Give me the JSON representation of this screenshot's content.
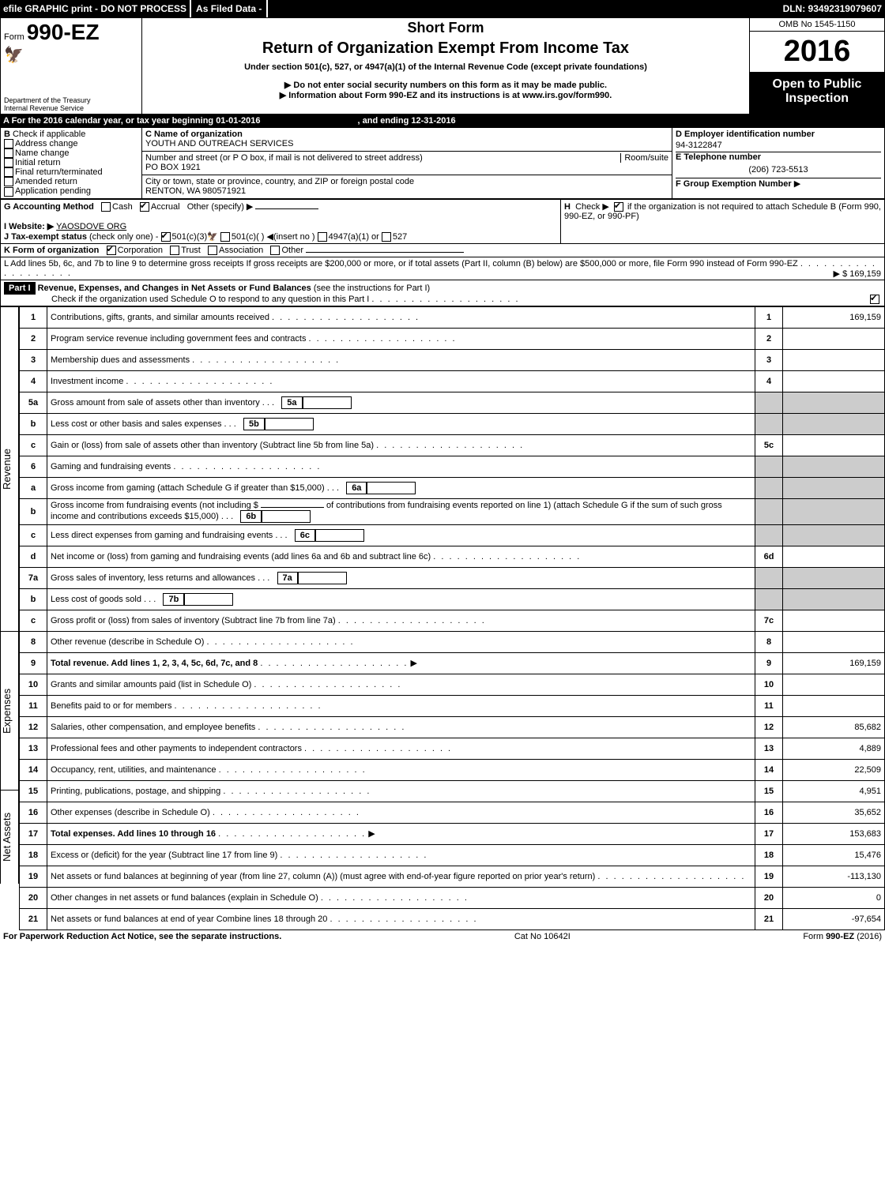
{
  "header": {
    "efile": "efile GRAPHIC print - DO NOT PROCESS",
    "asfiled": "As Filed Data -",
    "dln": "DLN: 93492319079607"
  },
  "top": {
    "form_prefix": "Form",
    "form_number": "990-EZ",
    "dept1": "Department of the Treasury",
    "dept2": "Internal Revenue Service",
    "short_form": "Short Form",
    "return_title": "Return of Organization Exempt From Income Tax",
    "under_section": "Under section 501(c), 527, or 4947(a)(1) of the Internal Revenue Code (except private foundations)",
    "info1": "▶ Do not enter social security numbers on this form as it may be made public.",
    "info2": "▶ Information about Form 990-EZ and its instructions is at www.irs.gov/form990.",
    "omb": "OMB No 1545-1150",
    "year": "2016",
    "open1": "Open to Public",
    "open2": "Inspection"
  },
  "section_a": {
    "text": "A  For the 2016 calendar year, or tax year beginning 01-01-2016",
    "ending": ", and ending 12-31-2016"
  },
  "section_b": {
    "title": "B",
    "check_label": "Check if applicable",
    "items": [
      "Address change",
      "Name change",
      "Initial return",
      "Final return/terminated",
      "Amended return",
      "Application pending"
    ]
  },
  "section_c": {
    "label": "C Name of organization",
    "name": "YOUTH AND OUTREACH SERVICES",
    "street_label": "Number and street (or P O box, if mail is not delivered to street address)",
    "room_label": "Room/suite",
    "street": "PO BOX 1921",
    "city_label": "City or town, state or province, country, and ZIP or foreign postal code",
    "city": "RENTON, WA  980571921"
  },
  "section_d": {
    "label": "D Employer identification number",
    "value": "94-3122847",
    "e_label": "E Telephone number",
    "e_value": "(206) 723-5513",
    "f_label": "F Group Exemption Number",
    "f_arrow": "▶"
  },
  "section_g": {
    "label": "G Accounting Method",
    "cash": "Cash",
    "accrual": "Accrual",
    "other": "Other (specify) ▶"
  },
  "section_h": {
    "label": "H",
    "text1": "Check ▶",
    "text2": "if the organization is not required to attach Schedule B (Form 990, 990-EZ, or 990-PF)"
  },
  "section_i": {
    "label": "I Website: ▶",
    "value": "YAOSDOVE ORG"
  },
  "section_j": {
    "label": "J Tax-exempt status",
    "text": "(check only one) -",
    "opts": [
      "501(c)(3)",
      "501(c)( )",
      "4947(a)(1) or",
      "527"
    ],
    "insert": "◀(insert no )"
  },
  "section_k": {
    "label": "K Form of organization",
    "opts": [
      "Corporation",
      "Trust",
      "Association",
      "Other"
    ]
  },
  "section_l": {
    "text": "L Add lines 5b, 6c, and 7b to line 9 to determine gross receipts If gross receipts are $200,000 or more, or if total assets (Part II, column (B) below) are $500,000 or more, file Form 990 instead of Form 990-EZ",
    "amount": "▶ $ 169,159"
  },
  "part1": {
    "header": "Part I",
    "title": "Revenue, Expenses, and Changes in Net Assets or Fund Balances",
    "subtitle": "(see the instructions for Part I)",
    "check_text": "Check if the organization used Schedule O to respond to any question in this Part I"
  },
  "sections": {
    "revenue": "Revenue",
    "expenses": "Expenses",
    "netassets": "Net Assets"
  },
  "lines": [
    {
      "n": "1",
      "desc": "Contributions, gifts, grants, and similar amounts received",
      "col": "1",
      "amt": "169,159"
    },
    {
      "n": "2",
      "desc": "Program service revenue including government fees and contracts",
      "col": "2",
      "amt": ""
    },
    {
      "n": "3",
      "desc": "Membership dues and assessments",
      "col": "3",
      "amt": ""
    },
    {
      "n": "4",
      "desc": "Investment income",
      "col": "4",
      "amt": ""
    },
    {
      "n": "5a",
      "desc": "Gross amount from sale of assets other than inventory",
      "sub": "5a"
    },
    {
      "n": "b",
      "desc": "Less cost or other basis and sales expenses",
      "sub": "5b"
    },
    {
      "n": "c",
      "desc": "Gain or (loss) from sale of assets other than inventory (Subtract line 5b from line 5a)",
      "col": "5c",
      "amt": ""
    },
    {
      "n": "6",
      "desc": "Gaming and fundraising events"
    },
    {
      "n": "a",
      "desc": "Gross income from gaming (attach Schedule G if greater than $15,000)",
      "sub": "6a"
    },
    {
      "n": "b",
      "desc": "Gross income from fundraising events (not including $",
      "desc2": "of contributions from fundraising events reported on line 1) (attach Schedule G if the sum of such gross income and contributions exceeds $15,000)",
      "sub": "6b"
    },
    {
      "n": "c",
      "desc": "Less direct expenses from gaming and fundraising events",
      "sub": "6c"
    },
    {
      "n": "d",
      "desc": "Net income or (loss) from gaming and fundraising events (add lines 6a and 6b and subtract line 6c)",
      "col": "6d",
      "amt": ""
    },
    {
      "n": "7a",
      "desc": "Gross sales of inventory, less returns and allowances",
      "sub": "7a"
    },
    {
      "n": "b",
      "desc": "Less cost of goods sold",
      "sub": "7b"
    },
    {
      "n": "c",
      "desc": "Gross profit or (loss) from sales of inventory (Subtract line 7b from line 7a)",
      "col": "7c",
      "amt": ""
    },
    {
      "n": "8",
      "desc": "Other revenue (describe in Schedule O)",
      "col": "8",
      "amt": ""
    },
    {
      "n": "9",
      "desc": "Total revenue. Add lines 1, 2, 3, 4, 5c, 6d, 7c, and 8",
      "col": "9",
      "amt": "169,159",
      "bold": true,
      "arrow": true
    },
    {
      "n": "10",
      "desc": "Grants and similar amounts paid (list in Schedule O)",
      "col": "10",
      "amt": ""
    },
    {
      "n": "11",
      "desc": "Benefits paid to or for members",
      "col": "11",
      "amt": ""
    },
    {
      "n": "12",
      "desc": "Salaries, other compensation, and employee benefits",
      "col": "12",
      "amt": "85,682"
    },
    {
      "n": "13",
      "desc": "Professional fees and other payments to independent contractors",
      "col": "13",
      "amt": "4,889"
    },
    {
      "n": "14",
      "desc": "Occupancy, rent, utilities, and maintenance",
      "col": "14",
      "amt": "22,509"
    },
    {
      "n": "15",
      "desc": "Printing, publications, postage, and shipping",
      "col": "15",
      "amt": "4,951"
    },
    {
      "n": "16",
      "desc": "Other expenses (describe in Schedule O)",
      "col": "16",
      "amt": "35,652"
    },
    {
      "n": "17",
      "desc": "Total expenses. Add lines 10 through 16",
      "col": "17",
      "amt": "153,683",
      "bold": true,
      "arrow": true
    },
    {
      "n": "18",
      "desc": "Excess or (deficit) for the year (Subtract line 17 from line 9)",
      "col": "18",
      "amt": "15,476"
    },
    {
      "n": "19",
      "desc": "Net assets or fund balances at beginning of year (from line 27, column (A)) (must agree with end-of-year figure reported on prior year's return)",
      "col": "19",
      "amt": "-113,130"
    },
    {
      "n": "20",
      "desc": "Other changes in net assets or fund balances (explain in Schedule O)",
      "col": "20",
      "amt": "0"
    },
    {
      "n": "21",
      "desc": "Net assets or fund balances at end of year Combine lines 18 through 20",
      "col": "21",
      "amt": "-97,654"
    }
  ],
  "footer": {
    "left": "For Paperwork Reduction Act Notice, see the separate instructions.",
    "mid": "Cat No 10642I",
    "right": "Form 990-EZ (2016)"
  }
}
